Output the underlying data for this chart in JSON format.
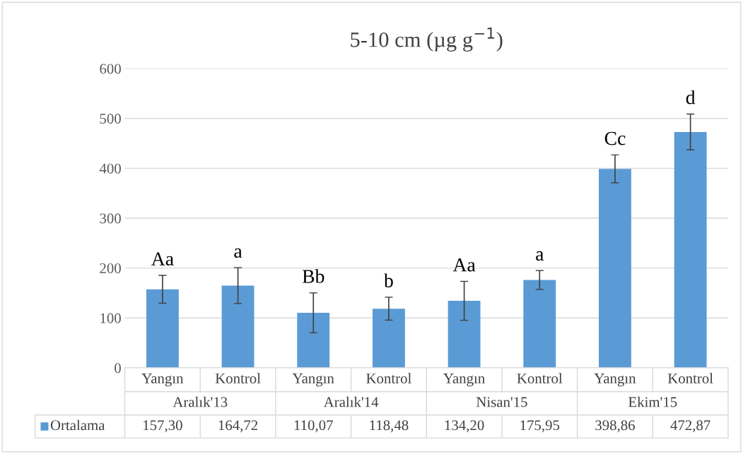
{
  "chart_data": {
    "type": "bar",
    "title": "5-10 cm (µg g$^{−1}$)",
    "categories": [
      "Yangın",
      "Kontrol",
      "Yangın",
      "Kontrol",
      "Yangın",
      "Kontrol",
      "Yangın",
      "Kontrol"
    ],
    "series": [
      {
        "name": "Ortalama",
        "color": "#5b9bd5",
        "values": [
          157.3,
          164.72,
          110.07,
          118.48,
          134.2,
          175.95,
          398.86,
          472.87
        ],
        "errors": [
          28,
          36,
          40,
          23,
          39,
          19,
          28,
          36
        ],
        "value_labels": [
          "157,30",
          "164,72",
          "110,07",
          "118,48",
          "134,20",
          "175,95",
          "398,86",
          "472,87"
        ]
      }
    ],
    "annotations": [
      "Aa",
      "a",
      "Bb",
      "b",
      "Aa",
      "a",
      "Cc",
      "d",
      "Aralık'13",
      "Aralık'14",
      "Nisan'15",
      "Ekim'15"
    ],
    "ylim": [
      0,
      600
    ],
    "yticks": [
      0,
      100,
      200,
      300,
      400,
      500,
      600
    ],
    "grid": "y"
  }
}
